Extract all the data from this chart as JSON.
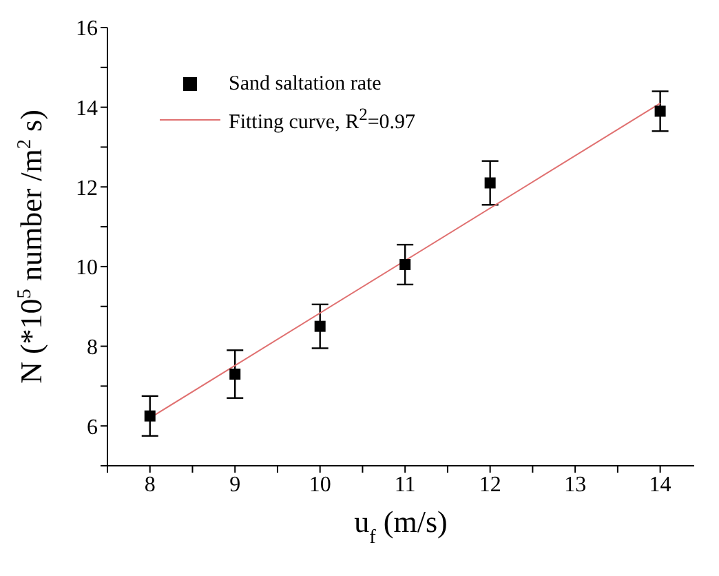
{
  "chart_data": {
    "type": "scatter",
    "xlabel": "u$_{f}$ (m/s)",
    "ylabel": "N (*10$^{5}$ number /m$^{2}$ s)",
    "x": [
      8,
      9,
      10,
      11,
      12,
      14
    ],
    "series": [
      {
        "name": "Sand saltation rate",
        "color": "#000000",
        "marker": "square",
        "values": [
          6.25,
          7.3,
          8.5,
          10.05,
          12.1,
          13.9
        ],
        "errors": [
          0.5,
          0.6,
          0.55,
          0.5,
          0.55,
          0.5
        ]
      },
      {
        "name": "Fitting curve, R$^{2}$=0.97",
        "type": "line",
        "color": "#e07070",
        "marker": "none",
        "line_style": "solid",
        "x": [
          8,
          14
        ],
        "values": [
          6.2,
          14.1
        ]
      }
    ],
    "xlim": [
      7.5,
      14.4
    ],
    "xticks": [
      {
        "value": 7.5,
        "label": null
      },
      8,
      {
        "value": 8.5,
        "label": null
      },
      9,
      {
        "value": 9.5,
        "label": null
      },
      10,
      {
        "value": 10.5,
        "label": null
      },
      11,
      {
        "value": 11.5,
        "label": null
      },
      12,
      {
        "value": 12.5,
        "label": null
      },
      13,
      {
        "value": 13.5,
        "label": null
      },
      14
    ],
    "ylim": [
      5,
      16
    ],
    "yticks": [
      {
        "value": 5,
        "label": null
      },
      6,
      {
        "value": 7,
        "label": null
      },
      8,
      {
        "value": 9,
        "label": null
      },
      10,
      {
        "value": 11,
        "label": null
      },
      12,
      {
        "value": 13,
        "label": null
      },
      14,
      {
        "value": 15,
        "label": null
      },
      16
    ],
    "grid": false,
    "legend": "top left"
  }
}
